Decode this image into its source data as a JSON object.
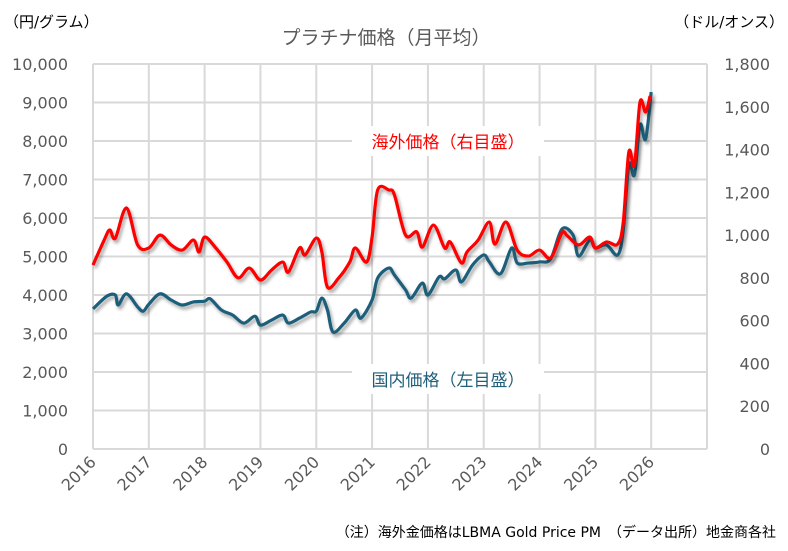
{
  "chart_data": {
    "type": "line",
    "title": "プラチナ価格（月平均）",
    "left_unit": "（円/グラム）",
    "right_unit": "（ドル/オンス）",
    "left_ylim": [
      0,
      10000
    ],
    "right_ylim": [
      0,
      1800
    ],
    "left_ticks": [
      "0",
      "1,000",
      "2,000",
      "3,000",
      "4,000",
      "5,000",
      "6,000",
      "7,000",
      "8,000",
      "9,000",
      "10,000"
    ],
    "right_ticks": [
      "0",
      "200",
      "400",
      "600",
      "800",
      "1,000",
      "1,200",
      "1,400",
      "1,600",
      "1,800"
    ],
    "x_ticks": [
      "2016",
      "2017",
      "2018",
      "2019",
      "2020",
      "2021",
      "2022",
      "2023",
      "2024",
      "2025",
      "2026"
    ],
    "xlim": [
      2016,
      2027
    ],
    "grid": true,
    "footnote": "（注）海外金価格はLBMA Gold Price PM　（データ出所）地金商各社",
    "series": [
      {
        "name": "国内価格（左目盛）",
        "axis": "left",
        "color": "#1f5f7a",
        "x": [
          2016.0,
          2016.25,
          2016.4,
          2016.45,
          2016.6,
          2016.8,
          2016.9,
          2017.0,
          2017.2,
          2017.4,
          2017.6,
          2017.8,
          2018.0,
          2018.1,
          2018.3,
          2018.5,
          2018.7,
          2018.9,
          2019.0,
          2019.2,
          2019.4,
          2019.5,
          2019.7,
          2019.9,
          2020.0,
          2020.1,
          2020.2,
          2020.3,
          2020.5,
          2020.7,
          2020.8,
          2021.0,
          2021.1,
          2021.3,
          2021.4,
          2021.6,
          2021.7,
          2021.9,
          2022.0,
          2022.2,
          2022.3,
          2022.5,
          2022.6,
          2022.8,
          2023.0,
          2023.1,
          2023.3,
          2023.5,
          2023.6,
          2023.8,
          2024.0,
          2024.2,
          2024.4,
          2024.6,
          2024.7,
          2024.9,
          2025.0,
          2025.2,
          2025.4,
          2025.5,
          2025.6,
          2025.7,
          2025.8,
          2025.9,
          2026.0
        ],
        "values": [
          3640,
          3970,
          4000,
          3740,
          4030,
          3690,
          3580,
          3760,
          4030,
          3870,
          3740,
          3820,
          3840,
          3900,
          3610,
          3480,
          3270,
          3450,
          3220,
          3350,
          3480,
          3270,
          3400,
          3560,
          3580,
          3920,
          3610,
          3040,
          3270,
          3610,
          3400,
          3870,
          4440,
          4700,
          4520,
          4130,
          3920,
          4310,
          4000,
          4470,
          4420,
          4650,
          4340,
          4780,
          5040,
          4860,
          4550,
          5220,
          4830,
          4830,
          4860,
          4940,
          5710,
          5560,
          5010,
          5430,
          5220,
          5300,
          5040,
          5690,
          7380,
          7120,
          8420,
          8050,
          9270
        ]
      },
      {
        "name": "海外価格（右目盛）",
        "axis": "right",
        "color": "#ff0000",
        "x": [
          2016.0,
          2016.2,
          2016.3,
          2016.4,
          2016.6,
          2016.8,
          2017.0,
          2017.2,
          2017.4,
          2017.6,
          2017.8,
          2017.9,
          2018.0,
          2018.2,
          2018.4,
          2018.6,
          2018.8,
          2019.0,
          2019.2,
          2019.4,
          2019.5,
          2019.7,
          2019.8,
          2020.0,
          2020.1,
          2020.2,
          2020.4,
          2020.6,
          2020.7,
          2020.9,
          2021.0,
          2021.1,
          2021.3,
          2021.4,
          2021.6,
          2021.8,
          2021.9,
          2022.1,
          2022.3,
          2022.4,
          2022.6,
          2022.7,
          2022.9,
          2023.1,
          2023.2,
          2023.4,
          2023.6,
          2023.8,
          2024.0,
          2024.2,
          2024.4,
          2024.5,
          2024.7,
          2024.9,
          2025.0,
          2025.2,
          2025.4,
          2025.5,
          2025.6,
          2025.7,
          2025.8,
          2025.9,
          2025.98
        ],
        "values": [
          860,
          977,
          1024,
          986,
          1127,
          954,
          940,
          1000,
          954,
          930,
          977,
          921,
          991,
          940,
          874,
          800,
          846,
          790,
          837,
          874,
          827,
          940,
          907,
          986,
          921,
          757,
          799,
          874,
          940,
          874,
          991,
          1211,
          1211,
          1188,
          1000,
          1015,
          944,
          1047,
          940,
          968,
          870,
          921,
          977,
          1061,
          958,
          1061,
          930,
          902,
          930,
          893,
          1010,
          996,
          954,
          991,
          940,
          968,
          958,
          1061,
          1389,
          1328,
          1622,
          1576,
          1650
        ]
      }
    ]
  }
}
